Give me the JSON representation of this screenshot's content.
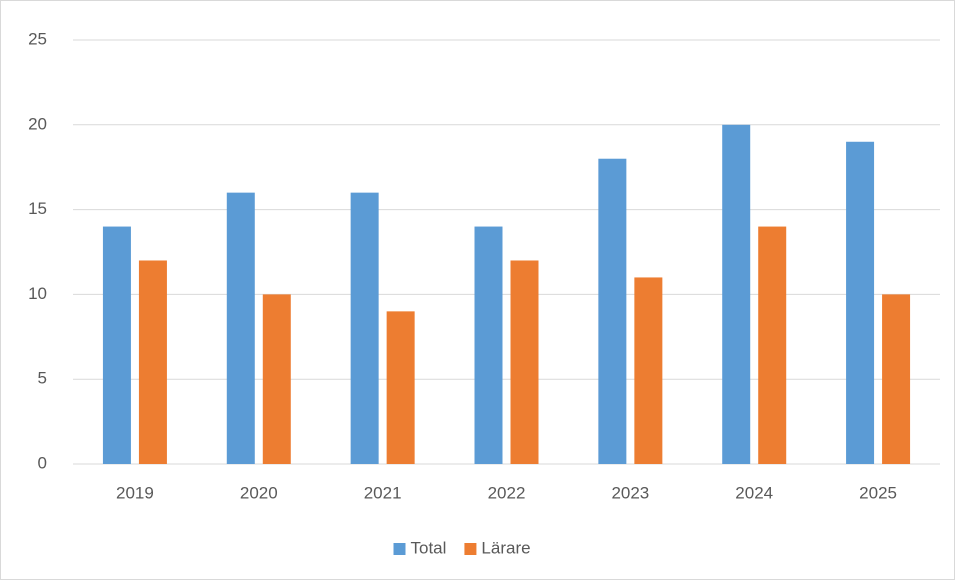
{
  "chart_data": {
    "type": "bar",
    "categories": [
      "2019",
      "2020",
      "2021",
      "2022",
      "2023",
      "2024",
      "2025"
    ],
    "series": [
      {
        "name": "Total",
        "color": "#5b9bd5",
        "values": [
          14,
          16,
          16,
          14,
          18,
          20,
          19
        ]
      },
      {
        "name": "Lärare",
        "color": "#ed7d31",
        "values": [
          12,
          10,
          9,
          12,
          11,
          14,
          10
        ]
      }
    ],
    "ylim": [
      0,
      25
    ],
    "yticks": [
      0,
      5,
      10,
      15,
      20,
      25
    ],
    "grid": true,
    "legend": "bottom"
  }
}
